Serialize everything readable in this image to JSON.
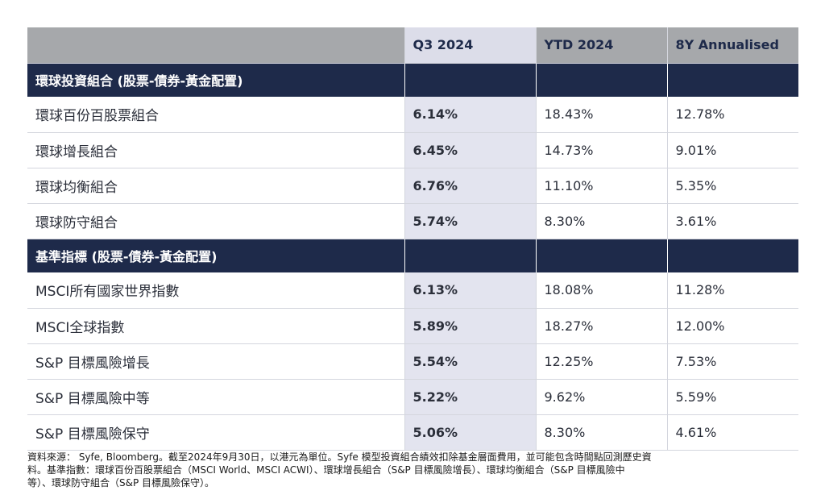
{
  "table": {
    "headers": [
      "",
      "Q3 2024",
      "YTD 2024",
      "8Y Annualised"
    ],
    "sections": [
      {
        "title": "環球投資組合 (股票-債券-黃金配置)",
        "rows": [
          {
            "name": "環球百份百股票組合",
            "q3": "6.14%",
            "ytd": "18.43%",
            "y8": "12.78%"
          },
          {
            "name": "環球增長組合",
            "q3": "6.45%",
            "ytd": "14.73%",
            "y8": "9.01%"
          },
          {
            "name": "環球均衡組合",
            "q3": "6.76%",
            "ytd": "11.10%",
            "y8": "5.35%"
          },
          {
            "name": "環球防守組合",
            "q3": "5.74%",
            "ytd": "8.30%",
            "y8": "3.61%"
          }
        ]
      },
      {
        "title": "基準指標 (股票-債券-黃金配置)",
        "rows": [
          {
            "name": "MSCI所有國家世界指數",
            "q3": "6.13%",
            "ytd": "18.08%",
            "y8": "11.28%"
          },
          {
            "name": "MSCI全球指數",
            "q3": "5.89%",
            "ytd": "18.27%",
            "y8": "12.00%"
          },
          {
            "name": "S&P 目標風險增長",
            "q3": "5.54%",
            "ytd": "12.25%",
            "y8": "7.53%"
          },
          {
            "name": "S&P 目標風險中等",
            "q3": "5.22%",
            "ytd": "9.62%",
            "y8": "5.59%"
          },
          {
            "name": "S&P 目標風險保守",
            "q3": "5.06%",
            "ytd": "8.30%",
            "y8": "4.61%"
          }
        ]
      }
    ]
  },
  "footnote": {
    "line1": "資料來源： Syfe, Bloomberg。截至2024年9月30日，以港元為單位。Syfe 模型投資組合績效扣除基金層面費用，並可能包含時間點回測歷史資",
    "line2": "料。基準指數：環球百份百股票組合（MSCI World、MSCI ACWI）、環球增長組合（S&P 目標風險增長）、環球均衡組合（S&P 目標風險中",
    "line3": "等）、環球防守組合（S&P 目標風險保守）。"
  }
}
